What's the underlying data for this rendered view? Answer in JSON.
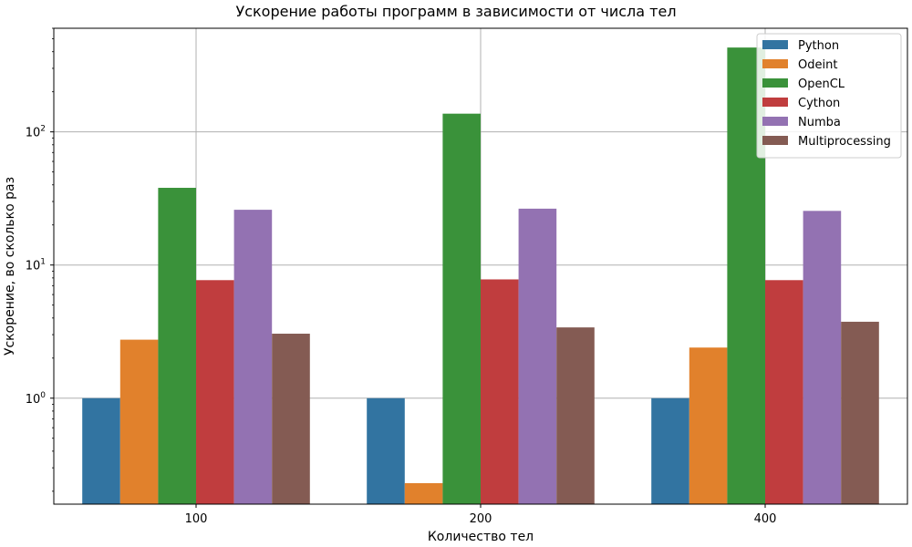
{
  "chart_data": {
    "type": "bar",
    "title": "Ускорение работы программ в зависимости от числа тел",
    "xlabel": "Количество тел",
    "ylabel": "Ускорение, во сколько раз",
    "yscale": "log",
    "ylim": [
      0.16,
      600
    ],
    "y_ticks": [
      {
        "value": 1,
        "label": "10^0"
      },
      {
        "value": 10,
        "label": "10^1"
      },
      {
        "value": 100,
        "label": "10^2"
      }
    ],
    "categories": [
      "100",
      "200",
      "400"
    ],
    "grid": true,
    "legend_position": "top-right",
    "series": [
      {
        "name": "Python",
        "color": "#3274a1",
        "values": [
          1.0,
          1.0,
          1.0
        ]
      },
      {
        "name": "Odeint",
        "color": "#e1812c",
        "values": [
          2.75,
          0.23,
          2.4
        ]
      },
      {
        "name": "OpenCL",
        "color": "#3a923a",
        "values": [
          38,
          137,
          430
        ]
      },
      {
        "name": "Cython",
        "color": "#c03d3e",
        "values": [
          7.7,
          7.8,
          7.7
        ]
      },
      {
        "name": "Numba",
        "color": "#9372b2",
        "values": [
          26,
          26.5,
          25.5
        ]
      },
      {
        "name": "Multiprocessing",
        "color": "#845b53",
        "values": [
          3.05,
          3.4,
          3.75
        ]
      }
    ]
  }
}
